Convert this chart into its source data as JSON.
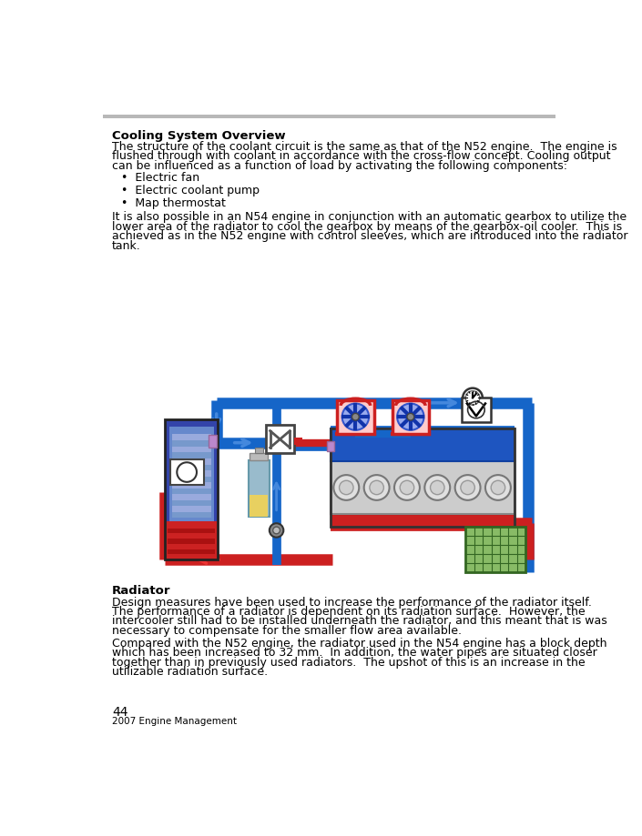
{
  "bg_color": "#ffffff",
  "header_line_color": "#b0b0b0",
  "heading1": "Cooling System Overview",
  "para1_lines": [
    "The structure of the coolant circuit is the same as that of the N52 engine.  The engine is",
    "flushed through with coolant in accordance with the cross-flow concept. Cooling output",
    "can be influenced as a function of load by activating the following components:"
  ],
  "bullets": [
    "Electric fan",
    "Electric coolant pump",
    "Map thermostat"
  ],
  "para2_lines": [
    "It is also possible in an N54 engine in conjunction with an automatic gearbox to utilize the",
    "lower area of the radiator to cool the gearbox by means of the gearbox-oil cooler.  This is",
    "achieved as in the N52 engine with control sleeves, which are introduced into the radiator",
    "tank."
  ],
  "heading2": "Radiator",
  "para3_lines": [
    "Design measures have been used to increase the performance of the radiator itself.",
    "The performance of a radiator is dependent on its radiation surface.  However, the",
    "intercooler still had to be installed underneath the radiator, and this meant that is was",
    "necessary to compensate for the smaller flow area available."
  ],
  "para4_lines": [
    "Compared with the N52 engine, the radiator used in the N54 engine has a block depth",
    "which has been increased to 32 mm.  In addition, the water pipes are situated closer",
    "together than in previously used radiators.  The upshot of this is an increase in the",
    "utilizable radiation surface."
  ],
  "footer_page": "44",
  "footer_sub": "2007 Engine Management",
  "blue": "#1565c8",
  "blue_light": "#4488dd",
  "blue_dark": "#0d3fa0",
  "red": "#cc2020",
  "red_dark": "#aa1010",
  "pipe_lw": 9
}
